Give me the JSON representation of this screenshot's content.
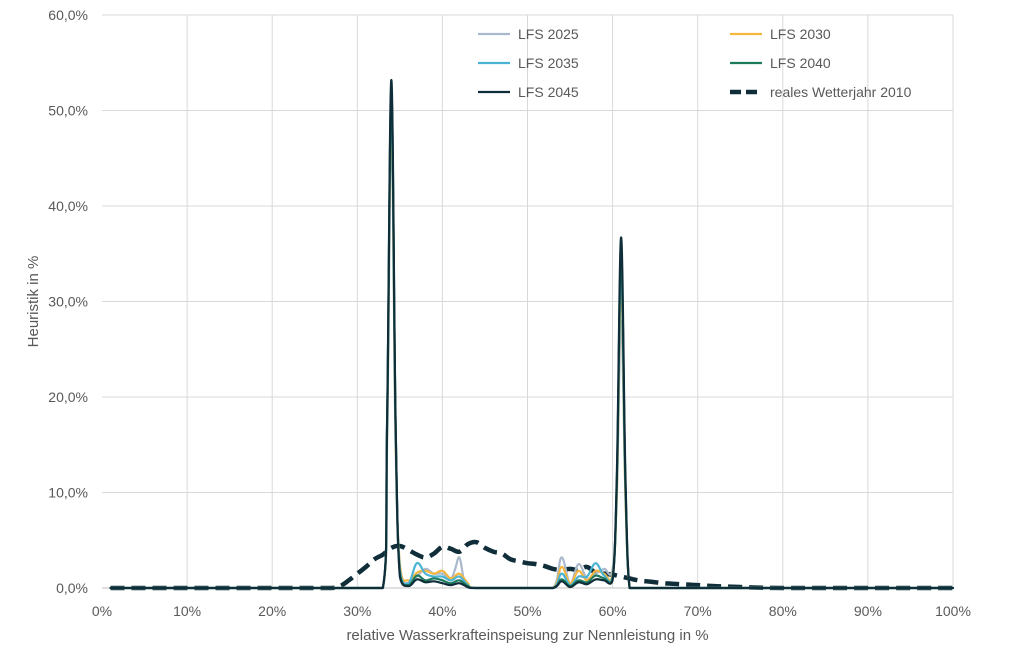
{
  "chart_data": {
    "type": "line",
    "xlabel": "relative Wasserkrafteinspeisung zur Nennleistung in %",
    "ylabel": "Heuristik in %",
    "xlim": [
      0,
      100
    ],
    "ylim": [
      0,
      60
    ],
    "x_ticks": [
      "0%",
      "10%",
      "20%",
      "30%",
      "40%",
      "50%",
      "60%",
      "70%",
      "80%",
      "90%",
      "100%"
    ],
    "y_ticks": [
      "0,0%",
      "10,0%",
      "20,0%",
      "30,0%",
      "40,0%",
      "50,0%",
      "60,0%"
    ],
    "grid": true,
    "legend_position": "top-right",
    "series": [
      {
        "name": "LFS 2025",
        "color": "#A9B8CC",
        "dashed": false,
        "x": [
          1,
          10,
          20,
          30,
          33,
          33.5,
          34,
          34.5,
          35,
          36,
          37,
          38,
          39,
          40,
          41,
          41.5,
          42,
          42.5,
          43,
          44,
          50,
          53,
          54,
          55,
          56,
          57,
          58,
          59,
          60,
          60.5,
          61,
          61.5,
          62,
          63,
          70,
          80,
          90,
          100
        ],
        "y": [
          0,
          0,
          0,
          0,
          0,
          15,
          48,
          15,
          2,
          0.5,
          1.2,
          2,
          1.5,
          1.5,
          1,
          2,
          3.2,
          1,
          0,
          0,
          0,
          0,
          3.2,
          0.5,
          2.5,
          1,
          1.5,
          2,
          2,
          10,
          28,
          10,
          0,
          0,
          0,
          0,
          0,
          0
        ]
      },
      {
        "name": "LFS 2030",
        "color": "#F4B63F",
        "dashed": false,
        "x": [
          1,
          10,
          20,
          30,
          33,
          33.5,
          34,
          34.5,
          35,
          36,
          37,
          38,
          39,
          40,
          41,
          42,
          43,
          44,
          50,
          53,
          54,
          55,
          56,
          57,
          58,
          59,
          60,
          60.5,
          61,
          61.5,
          62,
          63,
          70,
          80,
          90,
          100
        ],
        "y": [
          0,
          0,
          0,
          0,
          0,
          16,
          50,
          16,
          2.5,
          0.8,
          1.6,
          1.8,
          1.5,
          1.8,
          1,
          1.5,
          0.5,
          0,
          0,
          0,
          2.2,
          0.5,
          1.8,
          0.8,
          1.8,
          1.5,
          1.5,
          10,
          32,
          10,
          0,
          0,
          0,
          0,
          0,
          0
        ]
      },
      {
        "name": "LFS 2035",
        "color": "#4BB3D3",
        "dashed": false,
        "x": [
          1,
          10,
          20,
          30,
          33,
          33.5,
          34,
          34.5,
          35,
          36,
          37,
          38,
          39,
          40,
          41,
          42,
          43,
          44,
          50,
          53,
          54,
          55,
          56,
          57,
          58,
          59,
          60,
          60.5,
          61,
          61.5,
          62,
          63,
          70,
          80,
          90,
          100
        ],
        "y": [
          0,
          0,
          0,
          0,
          0,
          17,
          51,
          17,
          2,
          0.5,
          2.6,
          1.5,
          1.2,
          1.2,
          0.8,
          1.2,
          0.3,
          0,
          0,
          0,
          1.5,
          0.3,
          1.2,
          1.2,
          2.6,
          1.3,
          1.2,
          11,
          33.5,
          11,
          0,
          0,
          0,
          0,
          0,
          0
        ]
      },
      {
        "name": "LFS 2040",
        "color": "#1E7A5C",
        "dashed": false,
        "x": [
          1,
          10,
          20,
          30,
          33,
          33.5,
          34,
          34.5,
          35,
          36,
          37,
          38,
          39,
          40,
          41,
          42,
          43,
          44,
          50,
          53,
          54,
          55,
          56,
          57,
          58,
          59,
          60,
          60.5,
          61,
          61.5,
          62,
          63,
          70,
          80,
          90,
          100
        ],
        "y": [
          0,
          0,
          0,
          0,
          0,
          17,
          52,
          17,
          1.5,
          0.3,
          1.3,
          0.8,
          1,
          0.8,
          0.5,
          0.8,
          0.2,
          0,
          0,
          0,
          0.9,
          0.2,
          0.8,
          0.6,
          1.3,
          1,
          1,
          11,
          35,
          11,
          0,
          0,
          0,
          0,
          0,
          0
        ]
      },
      {
        "name": "LFS 2045",
        "color": "#0F2E3A",
        "dashed": false,
        "x": [
          1,
          10,
          20,
          30,
          33,
          33.5,
          34,
          34.5,
          35,
          36,
          37,
          38,
          39,
          40,
          41,
          42,
          43,
          44,
          50,
          53,
          54,
          55,
          56,
          57,
          58,
          59,
          60,
          60.5,
          61,
          61.5,
          62,
          63,
          70,
          80,
          90,
          100
        ],
        "y": [
          0,
          0,
          0,
          0,
          0,
          17.5,
          53.2,
          17.5,
          1.2,
          0.2,
          0.9,
          0.6,
          0.7,
          0.5,
          0.3,
          0.5,
          0.1,
          0,
          0,
          0,
          0.7,
          0.1,
          0.6,
          0.4,
          0.9,
          0.8,
          0.8,
          12,
          36.7,
          12,
          0,
          0,
          0,
          0,
          0,
          0
        ]
      },
      {
        "name": "reales Wetterjahr 2010",
        "color": "#0F2E3A",
        "dashed": true,
        "x": [
          1,
          10,
          20,
          25,
          27,
          28,
          29,
          30,
          31,
          32,
          33,
          34,
          35,
          36,
          37,
          38,
          39,
          40,
          41,
          42,
          43,
          44,
          45,
          46,
          47,
          48,
          49,
          50,
          51,
          52,
          53,
          54,
          55,
          56,
          57,
          58,
          59,
          60,
          61,
          62,
          63,
          64,
          65,
          66,
          67,
          68,
          69,
          70,
          72,
          75,
          80,
          90,
          100
        ],
        "y": [
          0,
          0,
          0,
          0,
          0,
          0.2,
          0.8,
          1.5,
          2.2,
          3,
          3.5,
          4.2,
          4.4,
          4,
          3.5,
          3.2,
          3.6,
          4.3,
          4.1,
          3.8,
          4.6,
          4.8,
          4.2,
          3.8,
          3.6,
          3,
          2.8,
          2.6,
          2.5,
          2.3,
          2,
          1.9,
          2,
          1.9,
          2.2,
          1.6,
          1.5,
          1.4,
          1.2,
          1,
          0.8,
          0.7,
          0.6,
          0.5,
          0.45,
          0.4,
          0.35,
          0.3,
          0.2,
          0.1,
          0,
          0,
          0
        ]
      }
    ]
  }
}
